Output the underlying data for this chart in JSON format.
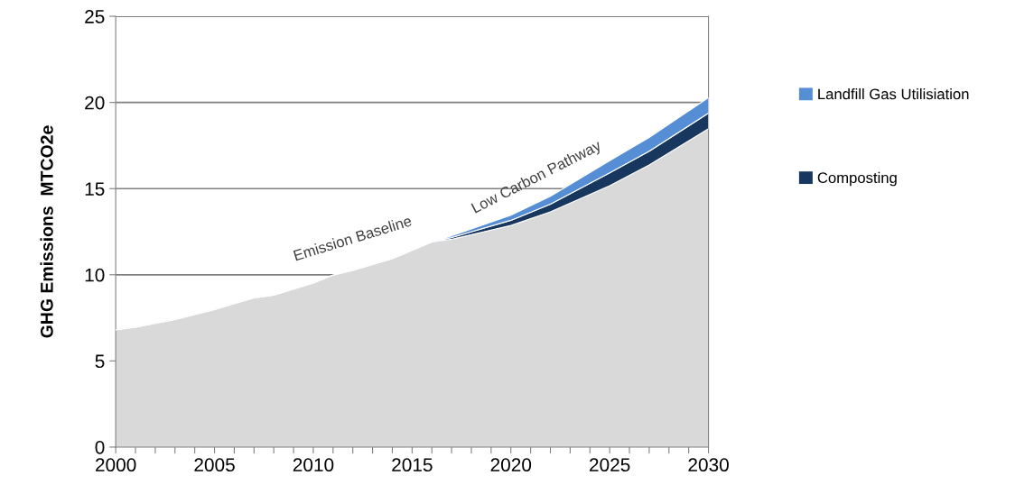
{
  "chart_data": {
    "type": "area",
    "stacked": true,
    "ylabel": "GHG Emissions  MTCO2e",
    "x": [
      2000,
      2001,
      2003,
      2005,
      2007,
      2008,
      2010,
      2011,
      2012,
      2014,
      2016,
      2017,
      2020,
      2022,
      2025,
      2027,
      2030
    ],
    "series": [
      {
        "color": "#d9d9d9",
        "values": [
          6.8,
          6.96,
          7.4,
          7.98,
          8.66,
          8.82,
          9.52,
          9.98,
          10.25,
          10.93,
          11.9,
          12.06,
          12.86,
          13.65,
          15.17,
          16.37,
          18.48
        ]
      },
      {
        "name": "Composting",
        "color": "#17375e",
        "values": [
          0,
          0,
          0,
          0,
          0,
          0,
          0,
          0,
          0,
          0,
          0,
          0.1,
          0.3,
          0.45,
          0.75,
          0.8,
          0.9
        ]
      },
      {
        "name": "Landfill Gas Utilisiation",
        "color": "#558ed5",
        "values": [
          0,
          0,
          0,
          0,
          0,
          0,
          0,
          0,
          0,
          0,
          0,
          0.1,
          0.3,
          0.45,
          0.7,
          0.8,
          0.9
        ]
      }
    ],
    "annotations": [
      "Emission Baseline",
      "Low Carbon Pathway"
    ],
    "xlim": [
      2000,
      2030
    ],
    "xticks": [
      2000,
      {
        "value": 2001,
        "label": null
      },
      {
        "value": 2002,
        "label": null
      },
      {
        "value": 2003,
        "label": null
      },
      {
        "value": 2004,
        "label": null
      },
      2005,
      {
        "value": 2006,
        "label": null
      },
      {
        "value": 2007,
        "label": null
      },
      {
        "value": 2008,
        "label": null
      },
      {
        "value": 2009,
        "label": null
      },
      2010,
      {
        "value": 2011,
        "label": null
      },
      {
        "value": 2012,
        "label": null
      },
      {
        "value": 2013,
        "label": null
      },
      {
        "value": 2014,
        "label": null
      },
      2015,
      {
        "value": 2016,
        "label": null
      },
      {
        "value": 2017,
        "label": null
      },
      {
        "value": 2018,
        "label": null
      },
      {
        "value": 2019,
        "label": null
      },
      2020,
      {
        "value": 2021,
        "label": null
      },
      {
        "value": 2022,
        "label": null
      },
      {
        "value": 2023,
        "label": null
      },
      {
        "value": 2024,
        "label": null
      },
      2025,
      {
        "value": 2026,
        "label": null
      },
      {
        "value": 2027,
        "label": null
      },
      {
        "value": 2028,
        "label": null
      },
      {
        "value": 2029,
        "label": null
      },
      2030
    ],
    "ylim": [
      0,
      25
    ],
    "yticks": [
      0,
      5,
      10,
      15,
      20,
      25
    ],
    "grid": "y",
    "legend": "right"
  }
}
